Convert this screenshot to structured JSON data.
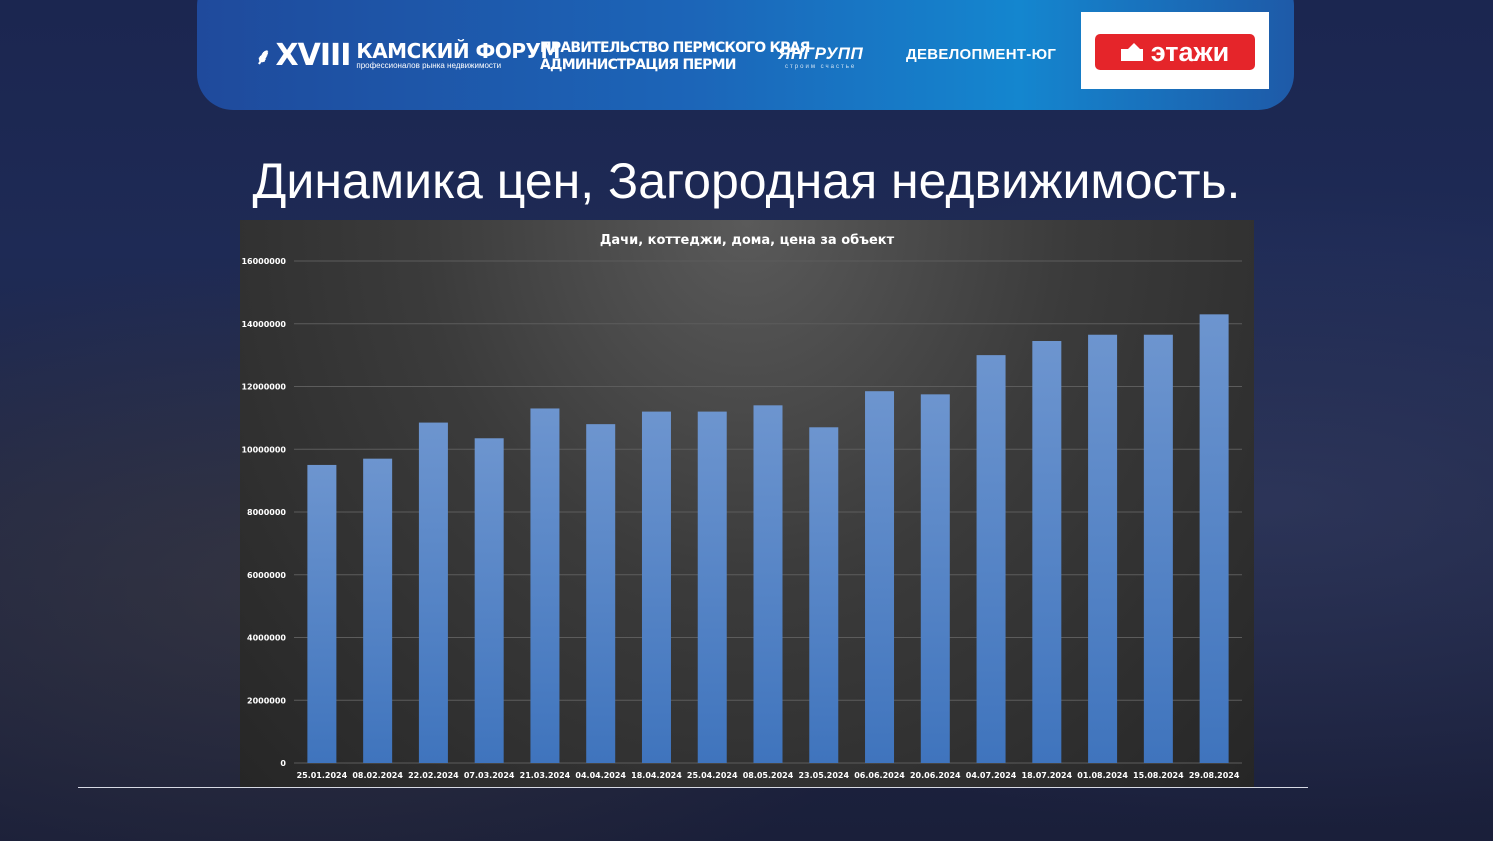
{
  "header": {
    "forum_mark": "⸙",
    "forum_roman": "XVIII",
    "forum_name": "КАМСКИЙ ФОРУМ",
    "forum_sub": "профессионалов рынка недвижимости",
    "gov_line1": "ПРАВИТЕЛЬСТВО ПЕРМСКОГО КРАЯ",
    "gov_line2": "АДМИНИСТРАЦИЯ ПЕРМИ",
    "yng_name": "ЯНГРУПП",
    "yng_sub": "строим счастье",
    "dev_name": "ДЕВЕЛОПМЕНТ-ЮГ",
    "etazhi_name": "этажи"
  },
  "slide": {
    "title": "Динамика цен, Загородная недвижимость."
  },
  "colors": {
    "bar": "#4a7cc0",
    "chart_text": "#ffffff",
    "grid": "#5c5c5c"
  },
  "chart_data": {
    "type": "bar",
    "title": "Дачи, коттеджи, дома, цена за объект",
    "xlabel": "",
    "ylabel": "",
    "ylim": [
      0,
      16000000
    ],
    "yticks": [
      "0",
      "2000000",
      "4000000",
      "6000000",
      "8000000",
      "10000000",
      "12000000",
      "14000000",
      "16000000"
    ],
    "grid": true,
    "legend": "none",
    "categories": [
      "25.01.2024",
      "08.02.2024",
      "22.02.2024",
      "07.03.2024",
      "21.03.2024",
      "04.04.2024",
      "18.04.2024",
      "25.04.2024",
      "08.05.2024",
      "23.05.2024",
      "06.06.2024",
      "20.06.2024",
      "04.07.2024",
      "18.07.2024",
      "01.08.2024",
      "15.08.2024",
      "29.08.2024"
    ],
    "values": [
      9500000,
      9700000,
      10850000,
      10350000,
      11300000,
      10800000,
      11200000,
      11200000,
      11400000,
      10700000,
      11850000,
      11750000,
      13000000,
      13450000,
      13650000,
      13650000,
      14300000
    ]
  }
}
